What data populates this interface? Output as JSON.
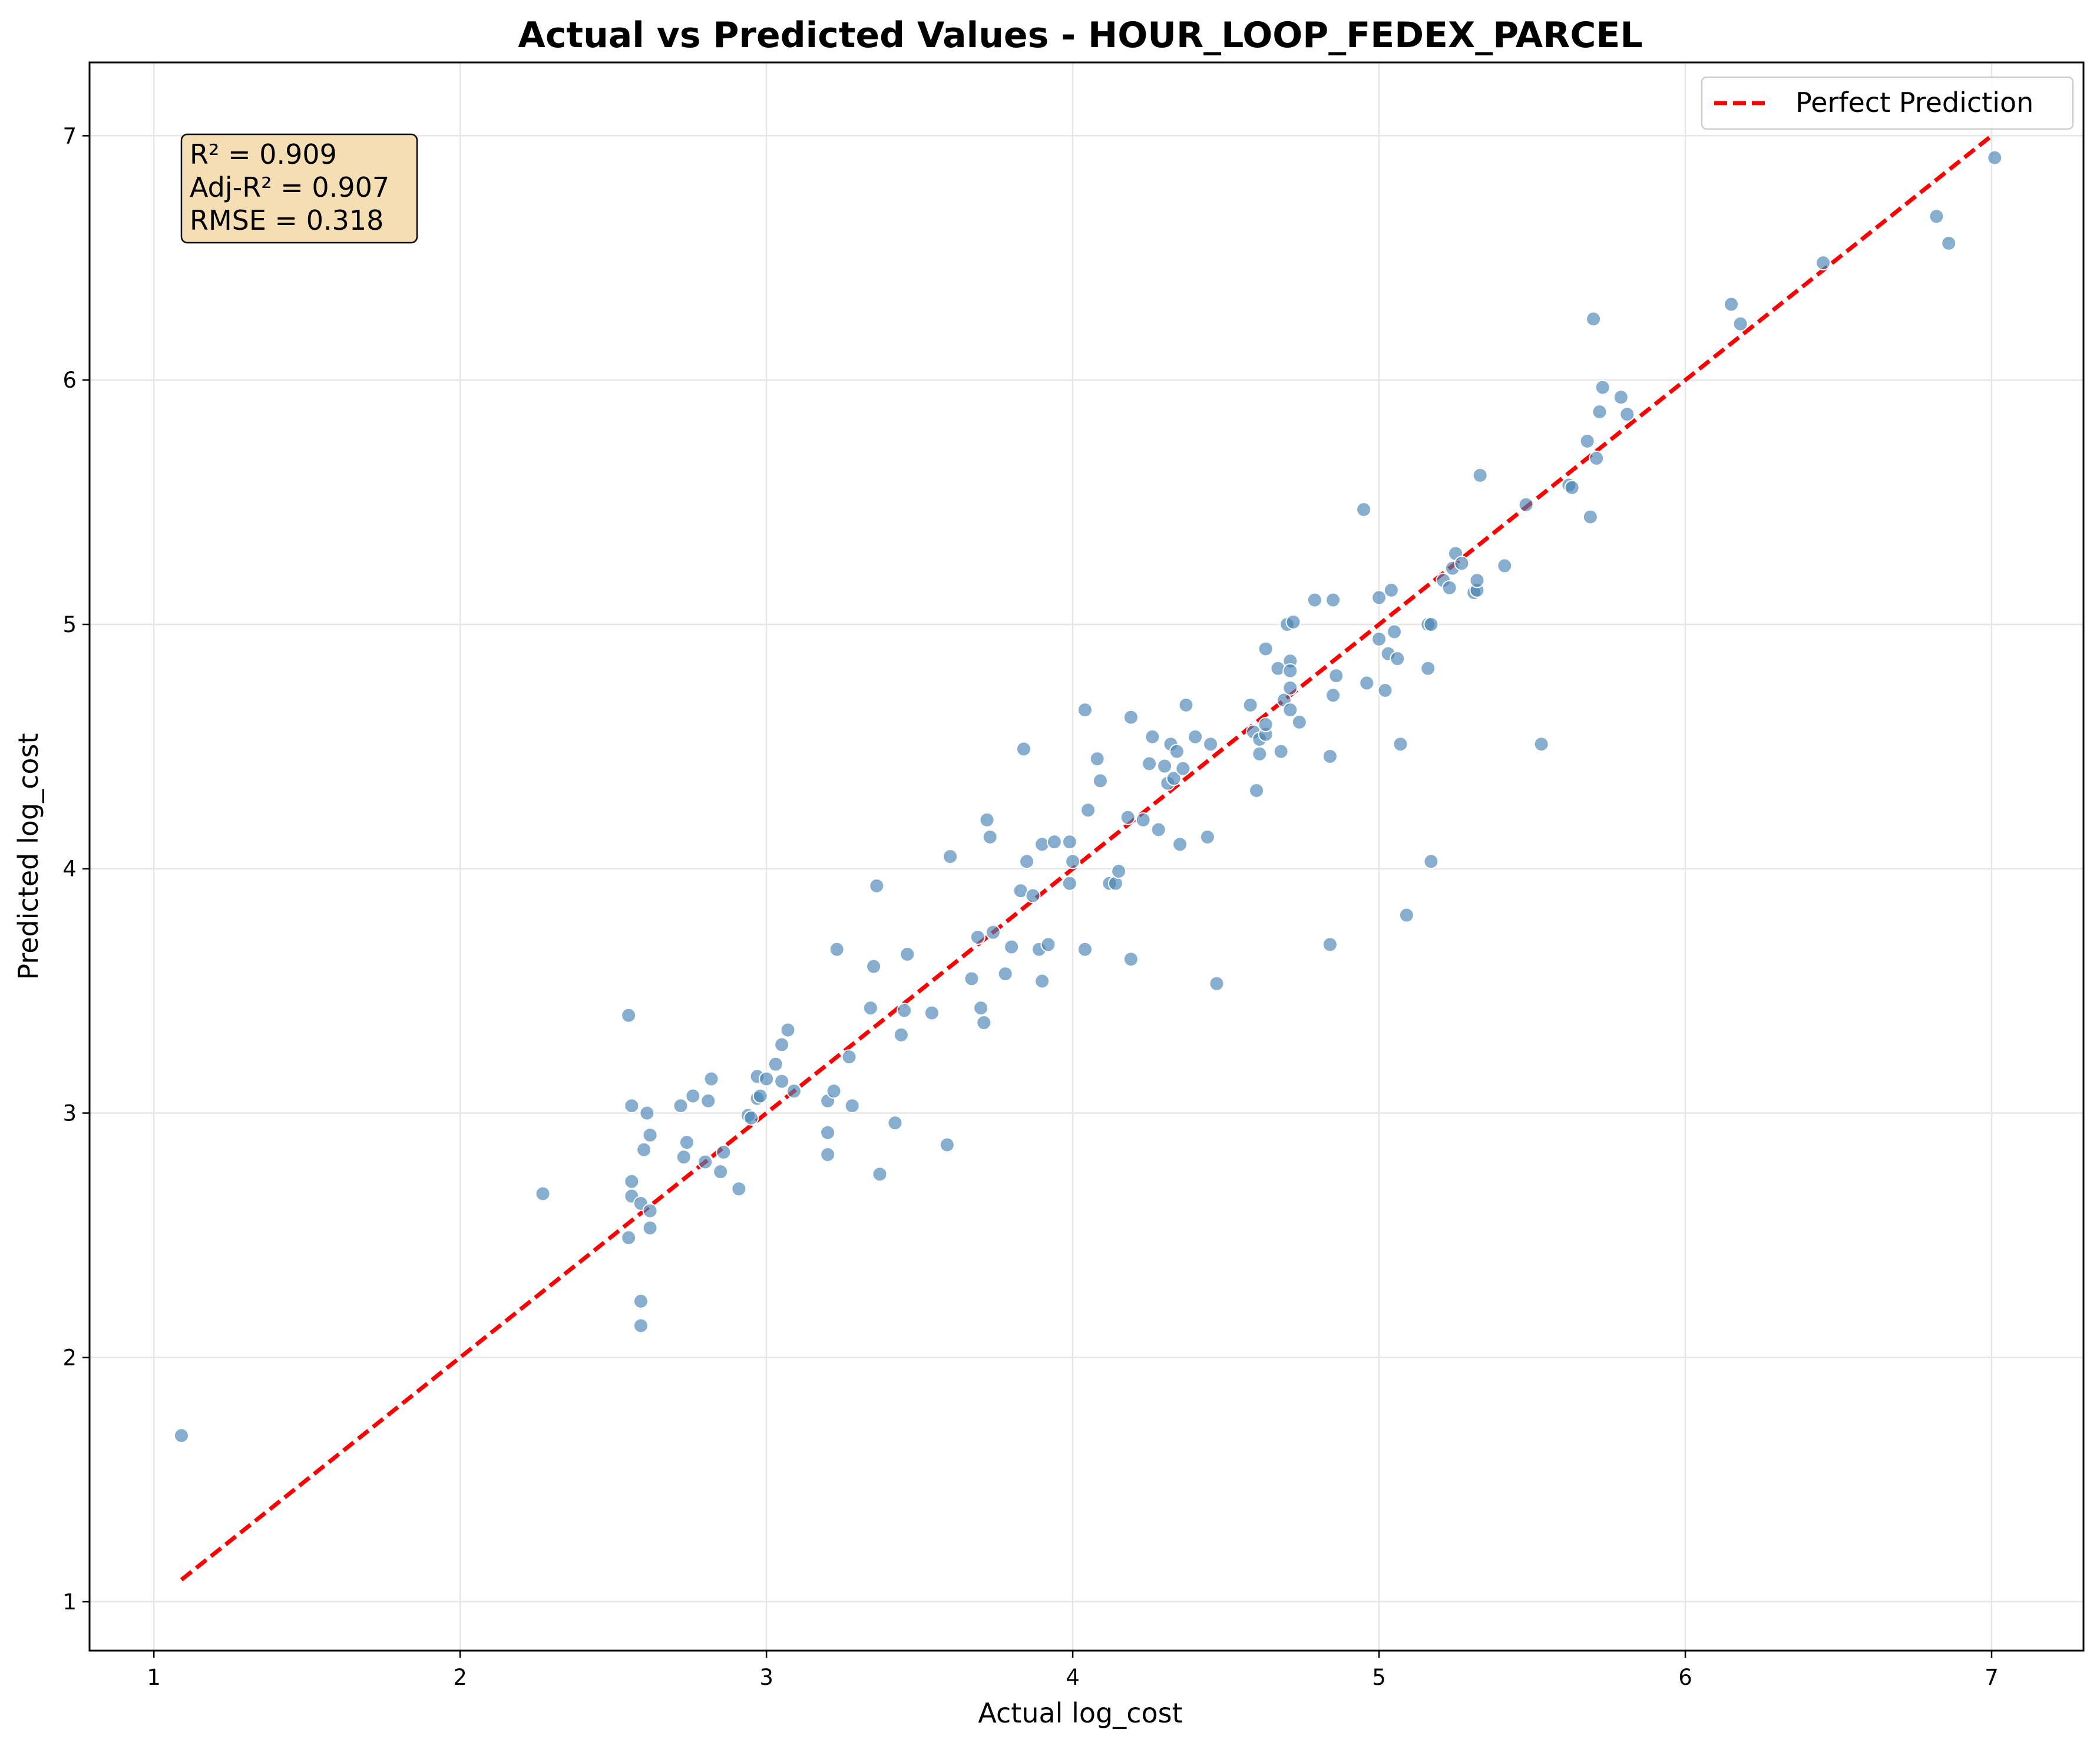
{
  "colors": {
    "points": "#4682b4",
    "reference_line": "#ff0000",
    "stats_box_fill": "#f5deb3",
    "grid": "#e6e6e6"
  },
  "stats": {
    "r2": "R² = 0.909",
    "adj_r2": "Adj-R² = 0.907",
    "rmse": "RMSE = 0.318"
  },
  "chart_data": {
    "type": "scatter",
    "title": "Actual vs Predicted Values - HOUR_LOOP_FEDEX_PARCEL",
    "xlabel": "Actual log_cost",
    "ylabel": "Predicted log_cost",
    "xlim": [
      0.79,
      7.3
    ],
    "ylim": [
      0.8,
      7.3
    ],
    "xticks": [
      1,
      2,
      3,
      4,
      5,
      6,
      7
    ],
    "yticks": [
      1,
      2,
      3,
      4,
      5,
      6,
      7
    ],
    "grid": true,
    "legend": {
      "position": "top-right",
      "entries": [
        "Perfect Prediction"
      ]
    },
    "reference_line": {
      "name": "Perfect Prediction",
      "style": "dashed",
      "x": [
        1.09,
        7.0
      ],
      "y": [
        1.09,
        7.0
      ]
    },
    "points": [
      [
        1.09,
        1.68
      ],
      [
        2.27,
        2.67
      ],
      [
        2.55,
        3.4
      ],
      [
        2.56,
        3.03
      ],
      [
        2.56,
        2.72
      ],
      [
        2.56,
        2.66
      ],
      [
        2.55,
        2.49
      ],
      [
        2.59,
        2.63
      ],
      [
        2.59,
        2.23
      ],
      [
        2.59,
        2.13
      ],
      [
        2.6,
        2.85
      ],
      [
        2.61,
        3.0
      ],
      [
        2.62,
        2.91
      ],
      [
        2.62,
        2.6
      ],
      [
        2.62,
        2.53
      ],
      [
        2.72,
        3.03
      ],
      [
        2.73,
        2.82
      ],
      [
        2.74,
        2.88
      ],
      [
        2.76,
        3.07
      ],
      [
        2.8,
        2.8
      ],
      [
        2.81,
        3.05
      ],
      [
        2.82,
        3.14
      ],
      [
        2.85,
        2.76
      ],
      [
        2.86,
        2.84
      ],
      [
        2.91,
        2.69
      ],
      [
        2.94,
        2.99
      ],
      [
        2.95,
        2.98
      ],
      [
        2.97,
        3.06
      ],
      [
        2.97,
        3.15
      ],
      [
        2.98,
        3.07
      ],
      [
        3.0,
        3.14
      ],
      [
        3.03,
        3.2
      ],
      [
        3.05,
        3.28
      ],
      [
        3.05,
        3.13
      ],
      [
        3.07,
        3.34
      ],
      [
        3.09,
        3.09
      ],
      [
        3.2,
        3.05
      ],
      [
        3.2,
        2.92
      ],
      [
        3.2,
        2.83
      ],
      [
        3.22,
        3.09
      ],
      [
        3.23,
        3.67
      ],
      [
        3.27,
        3.23
      ],
      [
        3.28,
        3.03
      ],
      [
        3.34,
        3.43
      ],
      [
        3.35,
        3.6
      ],
      [
        3.36,
        3.93
      ],
      [
        3.37,
        2.75
      ],
      [
        3.42,
        2.96
      ],
      [
        3.44,
        3.32
      ],
      [
        3.45,
        3.42
      ],
      [
        3.46,
        3.65
      ],
      [
        3.54,
        3.41
      ],
      [
        3.59,
        2.87
      ],
      [
        3.6,
        4.05
      ],
      [
        3.67,
        3.55
      ],
      [
        3.69,
        3.72
      ],
      [
        3.7,
        3.43
      ],
      [
        3.71,
        3.37
      ],
      [
        3.72,
        4.2
      ],
      [
        3.73,
        4.13
      ],
      [
        3.74,
        3.74
      ],
      [
        3.78,
        3.57
      ],
      [
        3.8,
        3.68
      ],
      [
        3.83,
        3.91
      ],
      [
        3.84,
        4.49
      ],
      [
        3.85,
        4.03
      ],
      [
        3.87,
        3.89
      ],
      [
        3.89,
        3.67
      ],
      [
        3.9,
        3.54
      ],
      [
        3.9,
        4.1
      ],
      [
        3.92,
        3.69
      ],
      [
        3.94,
        4.11
      ],
      [
        3.99,
        4.11
      ],
      [
        3.99,
        3.94
      ],
      [
        4.0,
        4.03
      ],
      [
        4.04,
        4.65
      ],
      [
        4.04,
        3.67
      ],
      [
        4.05,
        4.24
      ],
      [
        4.08,
        4.45
      ],
      [
        4.09,
        4.36
      ],
      [
        4.12,
        3.94
      ],
      [
        4.14,
        3.94
      ],
      [
        4.15,
        3.99
      ],
      [
        4.18,
        4.21
      ],
      [
        4.19,
        4.62
      ],
      [
        4.19,
        3.63
      ],
      [
        4.23,
        4.2
      ],
      [
        4.25,
        4.43
      ],
      [
        4.26,
        4.54
      ],
      [
        4.28,
        4.16
      ],
      [
        4.3,
        4.42
      ],
      [
        4.31,
        4.35
      ],
      [
        4.32,
        4.51
      ],
      [
        4.33,
        4.37
      ],
      [
        4.34,
        4.48
      ],
      [
        4.35,
        4.1
      ],
      [
        4.36,
        4.41
      ],
      [
        4.37,
        4.67
      ],
      [
        4.4,
        4.54
      ],
      [
        4.44,
        4.13
      ],
      [
        4.45,
        4.51
      ],
      [
        4.47,
        3.53
      ],
      [
        4.58,
        4.67
      ],
      [
        4.59,
        4.56
      ],
      [
        4.6,
        4.32
      ],
      [
        4.61,
        4.53
      ],
      [
        4.61,
        4.47
      ],
      [
        4.63,
        4.9
      ],
      [
        4.63,
        4.55
      ],
      [
        4.63,
        4.59
      ],
      [
        4.67,
        4.82
      ],
      [
        4.68,
        4.48
      ],
      [
        4.69,
        4.69
      ],
      [
        4.7,
        5.0
      ],
      [
        4.71,
        4.85
      ],
      [
        4.71,
        4.81
      ],
      [
        4.71,
        4.74
      ],
      [
        4.71,
        4.65
      ],
      [
        4.72,
        5.01
      ],
      [
        4.74,
        4.6
      ],
      [
        4.79,
        5.1
      ],
      [
        4.84,
        4.46
      ],
      [
        4.84,
        3.69
      ],
      [
        4.85,
        4.71
      ],
      [
        4.85,
        5.1
      ],
      [
        4.86,
        4.79
      ],
      [
        4.95,
        5.47
      ],
      [
        4.96,
        4.76
      ],
      [
        5.0,
        5.11
      ],
      [
        5.0,
        4.94
      ],
      [
        5.02,
        4.73
      ],
      [
        5.03,
        4.88
      ],
      [
        5.04,
        5.14
      ],
      [
        5.05,
        4.97
      ],
      [
        5.06,
        4.86
      ],
      [
        5.07,
        4.51
      ],
      [
        5.09,
        3.81
      ],
      [
        5.16,
        5.0
      ],
      [
        5.16,
        4.82
      ],
      [
        5.17,
        5.0
      ],
      [
        5.17,
        4.03
      ],
      [
        5.21,
        5.18
      ],
      [
        5.23,
        5.15
      ],
      [
        5.24,
        5.23
      ],
      [
        5.25,
        5.29
      ],
      [
        5.27,
        5.25
      ],
      [
        5.31,
        5.13
      ],
      [
        5.32,
        5.14
      ],
      [
        5.32,
        5.18
      ],
      [
        5.33,
        5.61
      ],
      [
        5.41,
        5.24
      ],
      [
        5.48,
        5.49
      ],
      [
        5.53,
        4.51
      ],
      [
        5.62,
        5.57
      ],
      [
        5.63,
        5.56
      ],
      [
        5.68,
        5.75
      ],
      [
        5.69,
        5.44
      ],
      [
        5.7,
        6.25
      ],
      [
        5.71,
        5.68
      ],
      [
        5.72,
        5.87
      ],
      [
        5.73,
        5.97
      ],
      [
        5.79,
        5.93
      ],
      [
        5.81,
        5.86
      ],
      [
        6.15,
        6.31
      ],
      [
        6.18,
        6.23
      ],
      [
        6.45,
        6.48
      ],
      [
        6.82,
        6.67
      ],
      [
        6.86,
        6.56
      ],
      [
        7.01,
        6.91
      ]
    ]
  }
}
